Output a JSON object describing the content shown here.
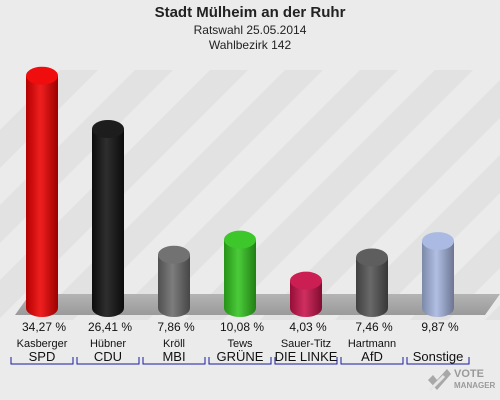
{
  "header": {
    "title": "Stadt Mülheim an der Ruhr",
    "subtitle": "Ratswahl 25.05.2014",
    "district": "Wahlbezirk 142"
  },
  "logo": {
    "line1": "VOTE",
    "line2": "MANAGER"
  },
  "chart_data": {
    "type": "bar",
    "unit": "%",
    "ylim": [
      0,
      36
    ],
    "categories": [
      {
        "candidate": "Kasberger",
        "party": "SPD",
        "color": "#ee0000"
      },
      {
        "candidate": "Hübner",
        "party": "CDU",
        "color": "#111111"
      },
      {
        "candidate": "Kröll",
        "party": "MBI",
        "color": "#6b6b6b"
      },
      {
        "candidate": "Tews",
        "party": "GRÜNE",
        "color": "#33c41f"
      },
      {
        "candidate": "Sauer-Titz",
        "party": "DIE LINKE",
        "color": "#c8134a"
      },
      {
        "candidate": "Hartmann",
        "party": "AfD",
        "color": "#555555"
      },
      {
        "candidate": "",
        "party": "Sonstige",
        "color": "#a6b6e0"
      }
    ],
    "values": [
      34.27,
      26.41,
      7.86,
      10.08,
      4.03,
      7.46,
      9.87
    ],
    "value_labels": [
      "34,27 %",
      "26,41 %",
      "7,86 %",
      "10,08 %",
      "4,03 %",
      "7,46 %",
      "9,87 %"
    ]
  }
}
